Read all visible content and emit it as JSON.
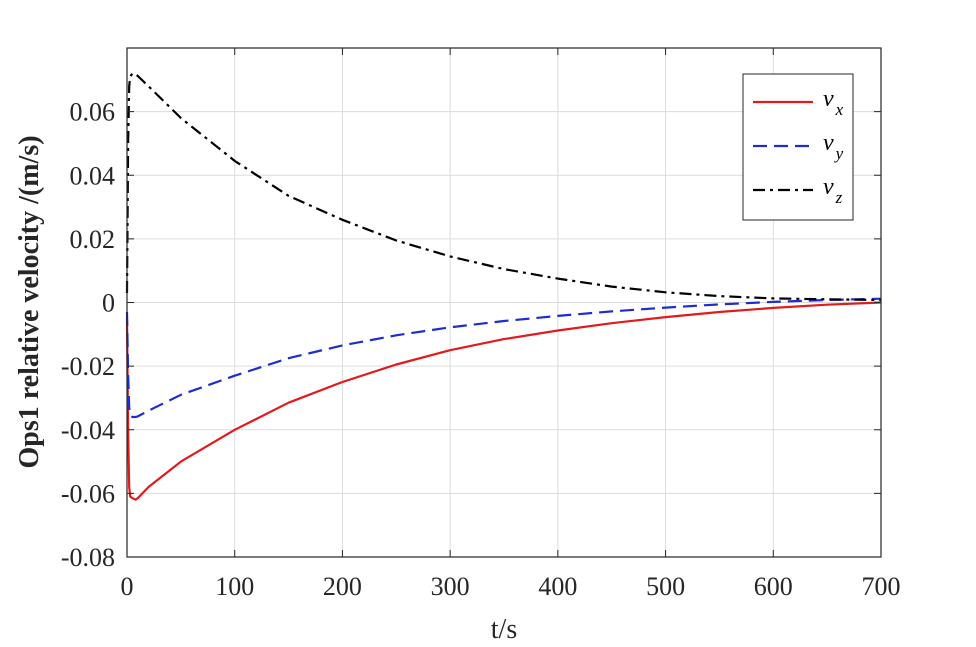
{
  "chart_data": {
    "type": "line",
    "xlabel": "t/s",
    "ylabel": "Ops1 relative velocity /(m/s)",
    "xlim": [
      0,
      700
    ],
    "ylim": [
      -0.08,
      0.08
    ],
    "xticks": [
      0,
      100,
      200,
      300,
      400,
      500,
      600,
      700
    ],
    "yticks": [
      -0.08,
      -0.06,
      -0.04,
      -0.02,
      0,
      0.02,
      0.04,
      0.06
    ],
    "xtick_labels": [
      "0",
      "100",
      "200",
      "300",
      "400",
      "500",
      "600",
      "700"
    ],
    "ytick_labels": [
      "-0.08",
      "-0.06",
      "-0.04",
      "-0.02",
      "0",
      "0.02",
      "0.04",
      "0.06"
    ],
    "grid": true,
    "legend_position": "top-right",
    "series": [
      {
        "name": "v_x",
        "legend_base": "v",
        "legend_sub": "x",
        "color": "#e31a1c",
        "dash": "solid",
        "x": [
          0,
          1,
          2,
          3,
          5,
          8,
          10,
          20,
          50,
          100,
          150,
          200,
          250,
          300,
          350,
          400,
          450,
          500,
          550,
          600,
          650,
          700
        ],
        "y": [
          -0.005,
          -0.04,
          -0.058,
          -0.061,
          -0.0615,
          -0.062,
          -0.0615,
          -0.058,
          -0.05,
          -0.04,
          -0.0315,
          -0.025,
          -0.0195,
          -0.015,
          -0.0115,
          -0.0088,
          -0.0065,
          -0.0046,
          -0.003,
          -0.0017,
          -0.0007,
          0.0
        ]
      },
      {
        "name": "v_y",
        "legend_base": "v",
        "legend_sub": "y",
        "color": "#1f2ccf",
        "dash": "dashed",
        "x": [
          0,
          1,
          2,
          3,
          5,
          8,
          10,
          20,
          50,
          100,
          150,
          200,
          250,
          300,
          350,
          400,
          450,
          500,
          550,
          600,
          650,
          700
        ],
        "y": [
          -0.003,
          -0.022,
          -0.033,
          -0.0355,
          -0.036,
          -0.036,
          -0.0358,
          -0.034,
          -0.029,
          -0.023,
          -0.0175,
          -0.0135,
          -0.0103,
          -0.0078,
          -0.0058,
          -0.0042,
          -0.0028,
          -0.0016,
          -0.0006,
          0.0002,
          0.0008,
          0.0012
        ]
      },
      {
        "name": "v_z",
        "legend_base": "v",
        "legend_sub": "z",
        "color": "#000000",
        "dash": "dashdot",
        "x": [
          0,
          1,
          2,
          3,
          5,
          8,
          10,
          20,
          50,
          100,
          150,
          200,
          250,
          300,
          350,
          400,
          450,
          500,
          550,
          600,
          650,
          700
        ],
        "y": [
          0.003,
          0.05,
          0.068,
          0.071,
          0.072,
          0.0718,
          0.0712,
          0.068,
          0.058,
          0.0445,
          0.0335,
          0.026,
          0.0195,
          0.0145,
          0.0105,
          0.0075,
          0.005,
          0.0032,
          0.002,
          0.0013,
          0.001,
          0.0008
        ]
      }
    ]
  }
}
